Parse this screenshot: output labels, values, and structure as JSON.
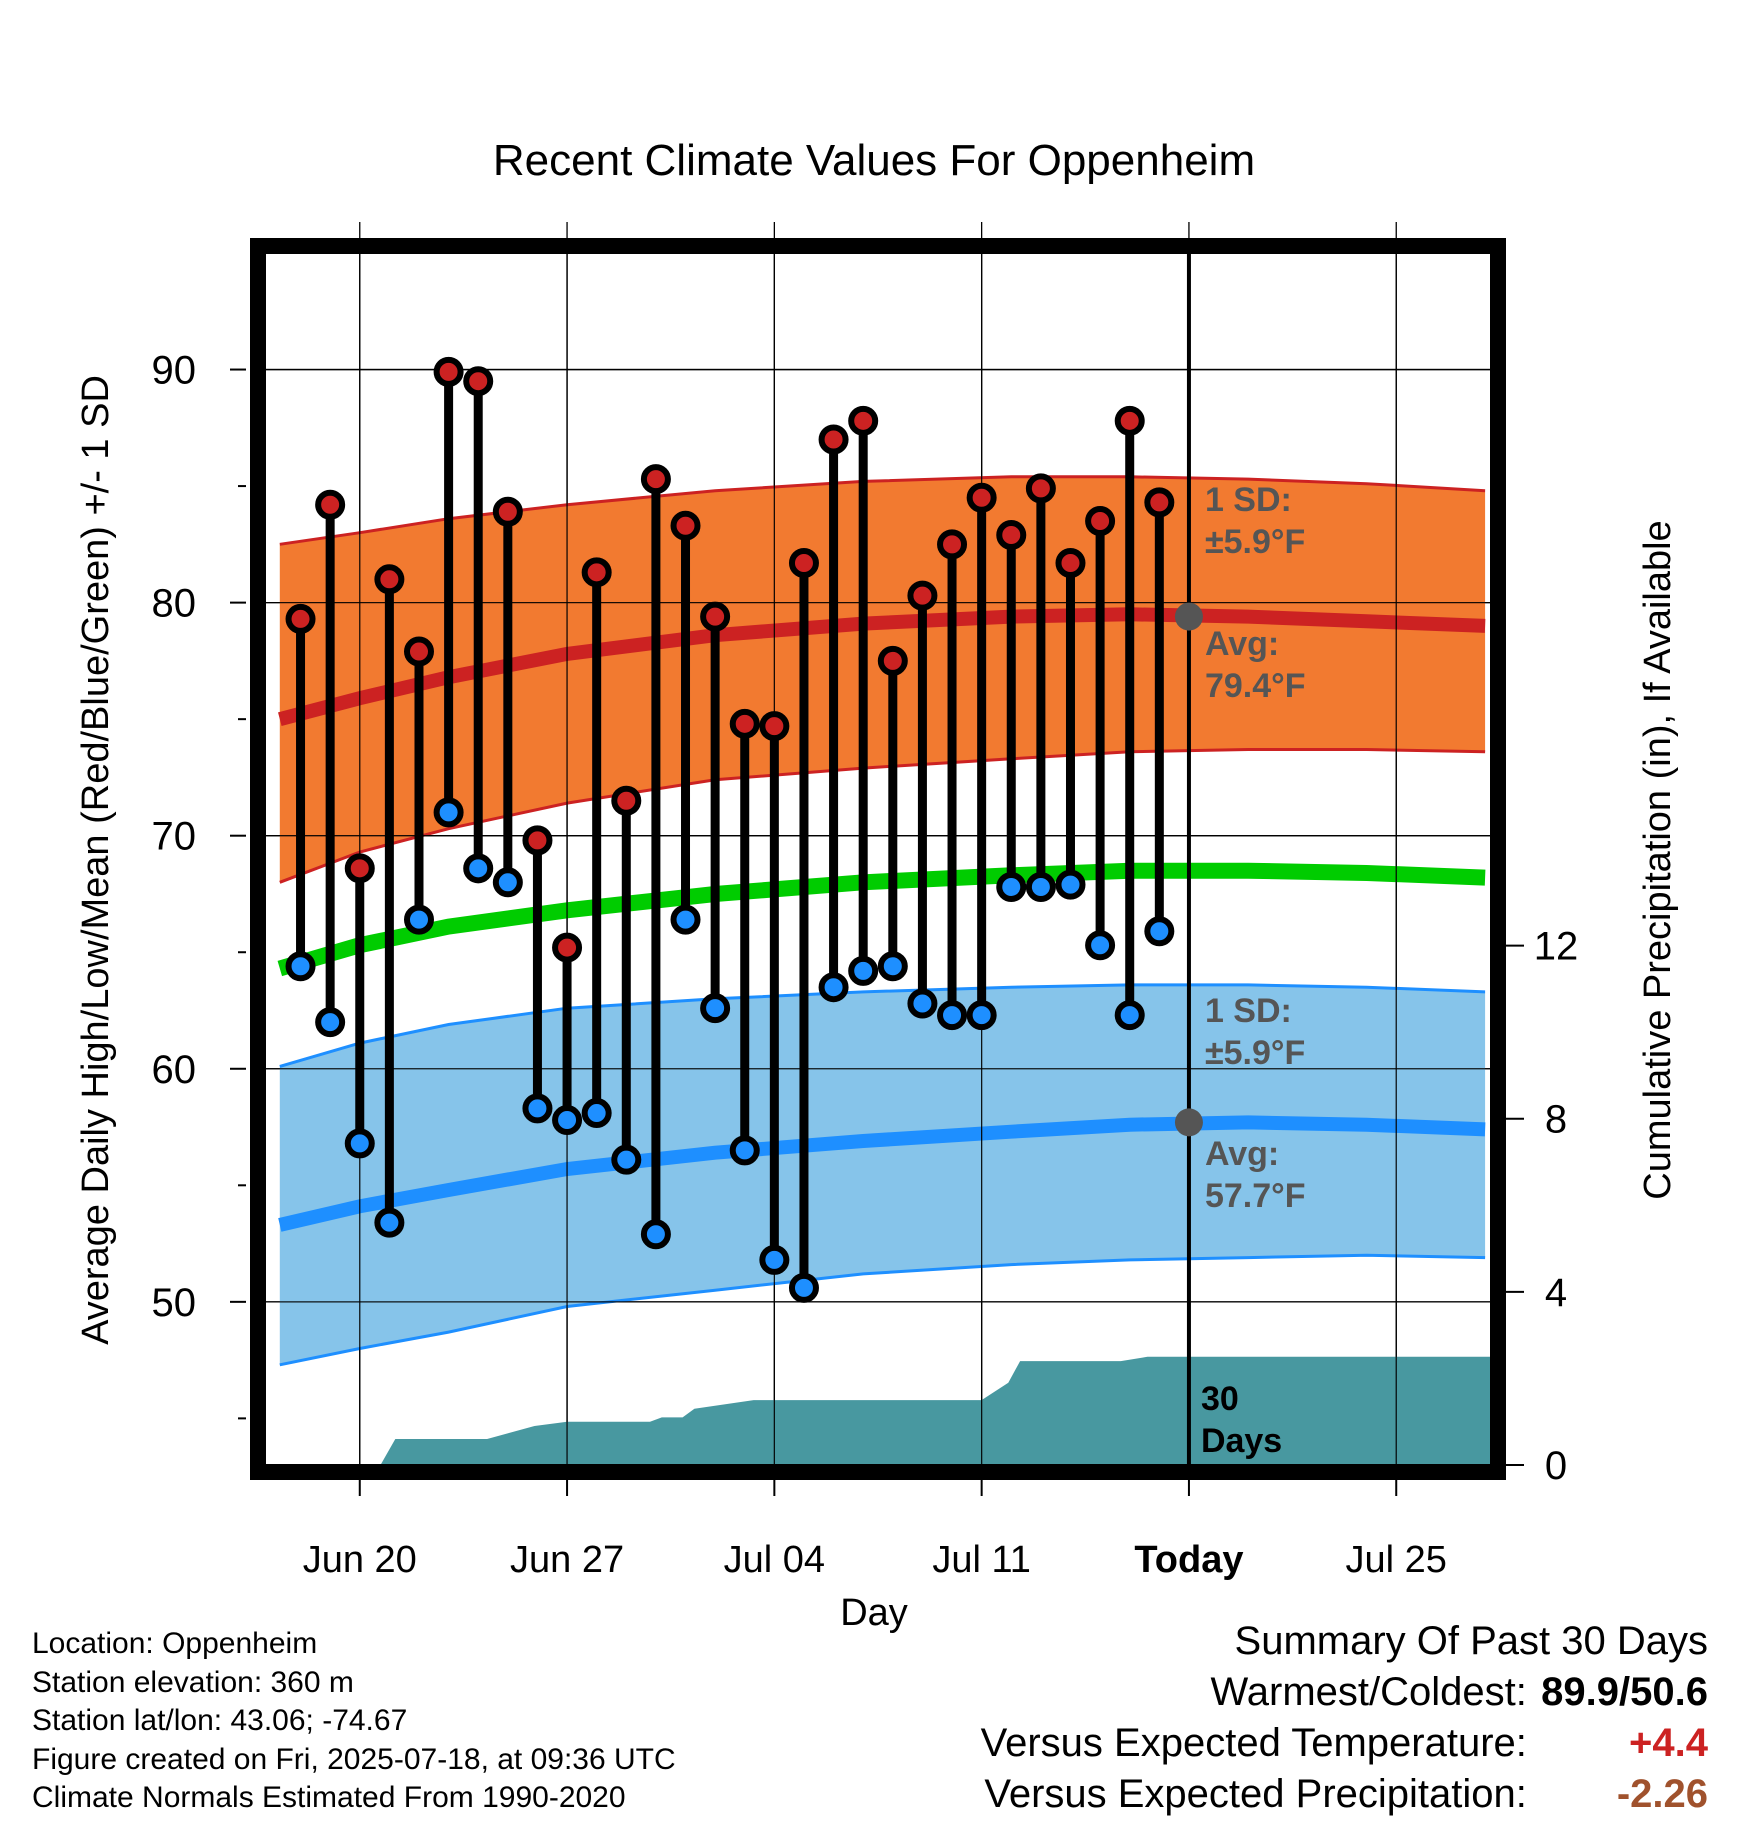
{
  "chart_data": {
    "type": "line",
    "title": "Recent Climate Values For Oppenheim",
    "xlabel": "Day",
    "ylabel": "Average Daily High/Low/Mean (Red/Blue/Green) +/- 1 SD",
    "ylabel_right": "Cumulative Precipitation (in), If Available",
    "xlim": [
      -1.2,
      40.2
    ],
    "ylim": [
      43,
      95
    ],
    "ylim_right": [
      0,
      28
    ],
    "x_ticks": [
      {
        "x": 2,
        "label": "Jun 20"
      },
      {
        "x": 9,
        "label": "Jun 27"
      },
      {
        "x": 16,
        "label": "Jul 04"
      },
      {
        "x": 23,
        "label": "Jul 11"
      },
      {
        "x": 30,
        "label": "Today"
      },
      {
        "x": 37,
        "label": "Jul 25"
      }
    ],
    "y_ticks": [
      50,
      60,
      70,
      80,
      90
    ],
    "y_ticks_right": [
      0,
      4,
      8,
      12
    ],
    "grid": true,
    "today_x": 30,
    "x_days": [
      0,
      1,
      2,
      3,
      4,
      5,
      6,
      7,
      8,
      9,
      10,
      11,
      12,
      13,
      14,
      15,
      16,
      17,
      18,
      19,
      20,
      21,
      22,
      23,
      24,
      25,
      26,
      27,
      28,
      29
    ],
    "daily_high": [
      79.3,
      84.2,
      68.6,
      81.0,
      77.9,
      89.9,
      89.5,
      83.9,
      69.8,
      65.2,
      81.3,
      71.5,
      85.3,
      83.3,
      79.4,
      74.8,
      74.7,
      81.7,
      87.0,
      87.8,
      77.5,
      80.3,
      82.5,
      84.5,
      82.9,
      84.9,
      81.7,
      83.5,
      87.8,
      84.3
    ],
    "daily_low": [
      64.4,
      62.0,
      56.8,
      53.4,
      66.4,
      71.0,
      68.6,
      68.0,
      58.3,
      57.8,
      58.1,
      56.1,
      52.9,
      66.4,
      62.6,
      56.5,
      51.8,
      50.6,
      63.5,
      64.2,
      64.4,
      62.8,
      62.3,
      62.3,
      67.8,
      67.8,
      67.9,
      65.3,
      62.3,
      65.9
    ],
    "normal_x": [
      -0.7,
      2,
      5,
      9,
      14,
      19,
      24,
      28,
      32,
      36,
      40
    ],
    "normal_high": [
      75.0,
      75.9,
      76.8,
      77.8,
      78.6,
      79.1,
      79.4,
      79.5,
      79.4,
      79.2,
      79.0
    ],
    "normal_high_upper": [
      82.5,
      83.0,
      83.6,
      84.2,
      84.8,
      85.2,
      85.4,
      85.4,
      85.3,
      85.1,
      84.8
    ],
    "normal_high_lower": [
      68.0,
      69.3,
      70.3,
      71.4,
      72.4,
      72.9,
      73.3,
      73.6,
      73.7,
      73.7,
      73.6
    ],
    "normal_mean": [
      64.3,
      65.3,
      66.1,
      66.8,
      67.5,
      68.0,
      68.3,
      68.5,
      68.5,
      68.4,
      68.2
    ],
    "normal_low": [
      53.3,
      54.1,
      54.8,
      55.7,
      56.4,
      56.9,
      57.3,
      57.6,
      57.7,
      57.6,
      57.4
    ],
    "normal_low_upper": [
      60.1,
      61.1,
      61.9,
      62.6,
      63.0,
      63.3,
      63.5,
      63.6,
      63.6,
      63.5,
      63.3
    ],
    "normal_low_lower": [
      47.3,
      48.0,
      48.7,
      49.8,
      50.5,
      51.2,
      51.6,
      51.8,
      51.9,
      52.0,
      51.9
    ],
    "precip_x": [
      -0.7,
      2.7,
      3.2,
      6.3,
      7.9,
      9.0,
      10.5,
      11.8,
      12.2,
      12.9,
      13.3,
      15.3,
      16.4,
      23.0,
      23.9,
      24.3,
      27.7,
      28.6,
      29.5,
      40.2
    ],
    "precip_cum": [
      0,
      0,
      0.6,
      0.6,
      0.9,
      1.0,
      1.0,
      1.0,
      1.1,
      1.1,
      1.3,
      1.5,
      1.5,
      1.5,
      1.9,
      2.4,
      2.4,
      2.5,
      2.5,
      2.5
    ],
    "bands": {
      "high": {
        "sd_label": "1 SD:",
        "sd_value": "±5.9°F",
        "avg_label": "Avg:",
        "avg_value": "79.4°F",
        "today_avg": 79.4
      },
      "low": {
        "sd_label": "1 SD:",
        "sd_value": "±5.9°F",
        "avg_label": "Avg:",
        "avg_value": "57.7°F",
        "today_avg": 57.7
      }
    },
    "precip_label_line1": "30",
    "precip_label_line2": "Days",
    "colors": {
      "high_marker": "#cc2222",
      "low_marker": "#1e8fff",
      "high_band": "#f27a30",
      "high_line": "#cc2222",
      "low_band": "#86c4ea",
      "low_line": "#1e8fff",
      "mean_line": "#00cc00",
      "precip_fill": "#4898a0",
      "annotation_text": "#555555"
    }
  },
  "footer": {
    "location": "Location: Oppenheim",
    "elevation": "Station elevation: 360 m",
    "latlon": "Station lat/lon: 43.06; -74.67",
    "created": "Figure created on Fri, 2025-07-18, at 09:36 UTC",
    "normals": "Climate Normals Estimated From 1990-2020"
  },
  "summary": {
    "title": "Summary Of Past 30 Days",
    "warm_cold_label": "Warmest/Coldest:",
    "warm_cold_value": "89.9/50.6",
    "temp_label": "Versus Expected Temperature:",
    "temp_value": "+4.4",
    "precip_label": "Versus Expected Precipitation:",
    "precip_value": "-2.26"
  }
}
